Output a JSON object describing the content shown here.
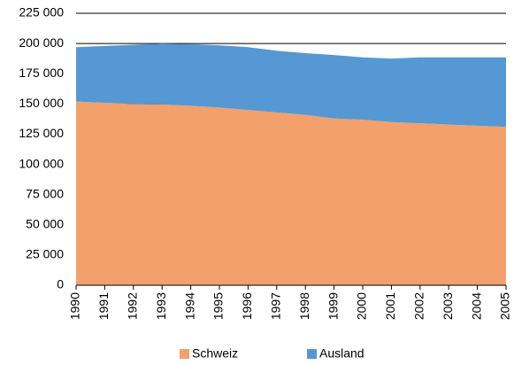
{
  "chart_data": {
    "type": "stacked-area",
    "categories": [
      "1990",
      "1991",
      "1992",
      "1993",
      "1994",
      "1995",
      "1996",
      "1997",
      "1998",
      "1999",
      "2000",
      "2001",
      "2002",
      "2003",
      "2004",
      "2005"
    ],
    "series": [
      {
        "name": "Schweiz",
        "color": "#f2a06c",
        "values": [
          152000,
          151000,
          150000,
          149500,
          148500,
          147000,
          145000,
          143000,
          141000,
          138000,
          137000,
          135000,
          134000,
          133000,
          132000,
          131000
        ]
      },
      {
        "name": "Ausland",
        "color": "#5598d3",
        "values": [
          45000,
          47000,
          49000,
          50500,
          51000,
          51500,
          52000,
          51000,
          51000,
          52500,
          51500,
          52500,
          54500,
          55500,
          56500,
          57500
        ]
      }
    ],
    "ylim": [
      0,
      225000
    ],
    "yticks": [
      0,
      {
        "value": 25000,
        "label": "25 000"
      },
      {
        "value": 50000,
        "label": "50 000"
      },
      {
        "value": 75000,
        "label": "75 000"
      },
      {
        "value": 100000,
        "label": "100 000"
      },
      {
        "value": 125000,
        "label": "125 000"
      },
      {
        "value": 150000,
        "label": "150 000"
      },
      {
        "value": 175000,
        "label": "175 000"
      },
      {
        "value": 200000,
        "label": "200 000"
      },
      {
        "value": 225000,
        "label": "225 000"
      }
    ],
    "grid": true,
    "legend": "bottom"
  }
}
